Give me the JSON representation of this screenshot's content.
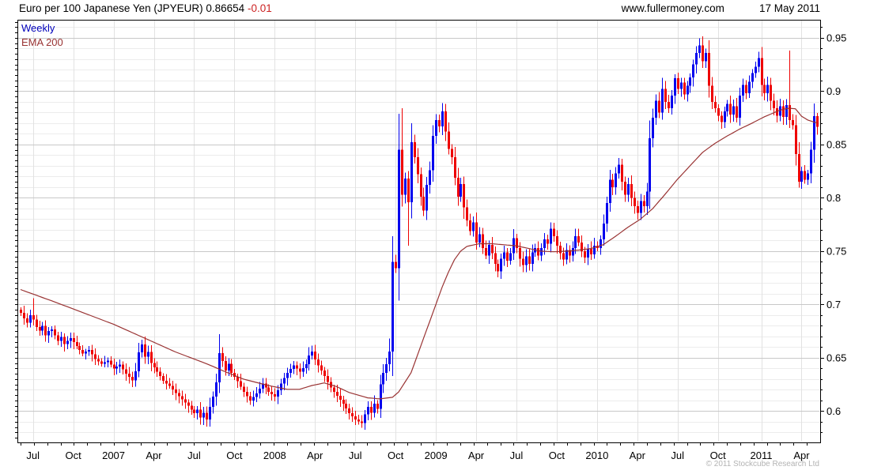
{
  "header": {
    "title": "Euro per 100 Japanese Yen (JPYEUR) 0.86654",
    "change": "-0.01",
    "site": "www.fullermoney.com",
    "date": "17 May 2011"
  },
  "legend": {
    "timeframe": "Weekly",
    "indicator": "EMA 200"
  },
  "footer": {
    "copyright": "© 2011 Stockcube Research Ltd"
  },
  "colors": {
    "up": "#0000ee",
    "down": "#ee0000",
    "ema_line": "#993333",
    "grid_minor": "#ececec",
    "grid_major": "#c8c8c8",
    "grid_vertical": "#e2e2e2",
    "axis": "#000000",
    "label": "#000000",
    "change_red": "#cc2222",
    "legend_blue": "#0000bb",
    "copyright_gray": "#b3b3b3"
  },
  "chart_data": {
    "type": "candlestick",
    "title": "Euro per 100 Japanese Yen (JPYEUR)",
    "timeframe": "Weekly",
    "indicator": "EMA 200",
    "last_price": 0.86654,
    "change": -0.01,
    "date": "17 May 2011",
    "y_axis": {
      "min": 0.5707,
      "max": 0.967,
      "label_values": [
        0.95,
        0.9,
        0.85,
        0.8,
        0.75,
        0.7,
        0.65,
        0.6
      ],
      "minor_tick_step": 0.01,
      "label_step": 0.05,
      "grid": true,
      "side": "right"
    },
    "x_axis": {
      "weeks": 258,
      "start": "Jun 2006",
      "end": "May 2011",
      "quarter_labels": [
        [
          4,
          "Jul"
        ],
        [
          17,
          "Oct"
        ],
        [
          30,
          "2007"
        ],
        [
          43,
          "Apr"
        ],
        [
          56,
          "Jul"
        ],
        [
          69,
          "Oct"
        ],
        [
          82,
          "2008"
        ],
        [
          95,
          "Apr"
        ],
        [
          108,
          "Jul"
        ],
        [
          121,
          "Oct"
        ],
        [
          134,
          "2009"
        ],
        [
          147,
          "Apr"
        ],
        [
          160,
          "Jul"
        ],
        [
          173,
          "Oct"
        ],
        [
          186,
          "2010"
        ],
        [
          199,
          "Apr"
        ],
        [
          212,
          "Jul"
        ],
        [
          225,
          "Oct"
        ],
        [
          239,
          "2011"
        ],
        [
          252,
          "Apr"
        ]
      ],
      "months_total": 60
    },
    "first_open": 0.695,
    "close_anchors": [
      [
        0,
        0.692
      ],
      [
        1,
        0.687
      ],
      [
        2,
        0.683
      ],
      [
        3,
        0.69
      ],
      [
        4,
        0.686
      ],
      [
        5,
        0.679
      ],
      [
        6,
        0.6755
      ],
      [
        7,
        0.68
      ],
      [
        8,
        0.671
      ],
      [
        9,
        0.675
      ],
      [
        10,
        0.6765
      ],
      [
        11,
        0.671
      ],
      [
        12,
        0.666
      ],
      [
        13,
        0.6695
      ],
      [
        14,
        0.663
      ],
      [
        16,
        0.6685
      ],
      [
        18,
        0.661
      ],
      [
        20,
        0.654
      ],
      [
        22,
        0.6575
      ],
      [
        24,
        0.649
      ],
      [
        26,
        0.6445
      ],
      [
        28,
        0.6475
      ],
      [
        30,
        0.64
      ],
      [
        32,
        0.6435
      ],
      [
        34,
        0.635
      ],
      [
        36,
        0.629
      ],
      [
        37,
        0.6375
      ],
      [
        38,
        0.655
      ],
      [
        39,
        0.6625
      ],
      [
        40,
        0.651
      ],
      [
        41,
        0.6555
      ],
      [
        42,
        0.645
      ],
      [
        44,
        0.637
      ],
      [
        46,
        0.6285
      ],
      [
        48,
        0.6235
      ],
      [
        50,
        0.617
      ],
      [
        52,
        0.611
      ],
      [
        54,
        0.605
      ],
      [
        56,
        0.598
      ],
      [
        57,
        0.6015
      ],
      [
        58,
        0.594
      ],
      [
        59,
        0.5985
      ],
      [
        60,
        0.592
      ],
      [
        61,
        0.604
      ],
      [
        62,
        0.6135
      ],
      [
        63,
        0.627
      ],
      [
        64,
        0.6545
      ],
      [
        65,
        0.647
      ],
      [
        66,
        0.638
      ],
      [
        67,
        0.6445
      ],
      [
        68,
        0.636
      ],
      [
        70,
        0.628
      ],
      [
        72,
        0.618
      ],
      [
        74,
        0.61
      ],
      [
        76,
        0.6165
      ],
      [
        78,
        0.626
      ],
      [
        80,
        0.618
      ],
      [
        82,
        0.6135
      ],
      [
        84,
        0.626
      ],
      [
        86,
        0.636
      ],
      [
        88,
        0.643
      ],
      [
        90,
        0.637
      ],
      [
        92,
        0.644
      ],
      [
        93,
        0.652
      ],
      [
        94,
        0.656
      ],
      [
        95,
        0.6485
      ],
      [
        96,
        0.643
      ],
      [
        98,
        0.633
      ],
      [
        100,
        0.622
      ],
      [
        102,
        0.6145
      ],
      [
        104,
        0.607
      ],
      [
        106,
        0.598
      ],
      [
        108,
        0.592
      ],
      [
        110,
        0.589
      ],
      [
        111,
        0.597
      ],
      [
        112,
        0.604
      ],
      [
        113,
        0.5985
      ],
      [
        114,
        0.607
      ],
      [
        115,
        0.602
      ],
      [
        116,
        0.625
      ],
      [
        117,
        0.636
      ],
      [
        118,
        0.644
      ],
      [
        119,
        0.656
      ],
      [
        120,
        0.74
      ],
      [
        121,
        0.734
      ],
      [
        122,
        0.845
      ],
      [
        123,
        0.803
      ],
      [
        124,
        0.818
      ],
      [
        125,
        0.796
      ],
      [
        126,
        0.852
      ],
      [
        127,
        0.838
      ],
      [
        128,
        0.822
      ],
      [
        129,
        0.801
      ],
      [
        130,
        0.788
      ],
      [
        131,
        0.812
      ],
      [
        132,
        0.826
      ],
      [
        133,
        0.858
      ],
      [
        134,
        0.873
      ],
      [
        135,
        0.867
      ],
      [
        136,
        0.881
      ],
      [
        137,
        0.862
      ],
      [
        138,
        0.846
      ],
      [
        139,
        0.838
      ],
      [
        140,
        0.819
      ],
      [
        141,
        0.801
      ],
      [
        142,
        0.813
      ],
      [
        143,
        0.791
      ],
      [
        144,
        0.779
      ],
      [
        145,
        0.769
      ],
      [
        146,
        0.777
      ],
      [
        147,
        0.758
      ],
      [
        148,
        0.766
      ],
      [
        149,
        0.753
      ],
      [
        150,
        0.746
      ],
      [
        151,
        0.756
      ],
      [
        152,
        0.748
      ],
      [
        153,
        0.738
      ],
      [
        154,
        0.731
      ],
      [
        155,
        0.743
      ],
      [
        156,
        0.749
      ],
      [
        157,
        0.741
      ],
      [
        158,
        0.748
      ],
      [
        159,
        0.762
      ],
      [
        160,
        0.753
      ],
      [
        161,
        0.743
      ],
      [
        162,
        0.737
      ],
      [
        163,
        0.745
      ],
      [
        164,
        0.738
      ],
      [
        165,
        0.749
      ],
      [
        166,
        0.753
      ],
      [
        167,
        0.746
      ],
      [
        168,
        0.753
      ],
      [
        169,
        0.761
      ],
      [
        170,
        0.757
      ],
      [
        171,
        0.771
      ],
      [
        172,
        0.764
      ],
      [
        173,
        0.755
      ],
      [
        174,
        0.748
      ],
      [
        175,
        0.742
      ],
      [
        176,
        0.751
      ],
      [
        177,
        0.746
      ],
      [
        178,
        0.753
      ],
      [
        179,
        0.764
      ],
      [
        180,
        0.758
      ],
      [
        181,
        0.75
      ],
      [
        182,
        0.744
      ],
      [
        183,
        0.752
      ],
      [
        184,
        0.747
      ],
      [
        185,
        0.755
      ],
      [
        186,
        0.753
      ],
      [
        187,
        0.761
      ],
      [
        188,
        0.776
      ],
      [
        189,
        0.795
      ],
      [
        190,
        0.817
      ],
      [
        191,
        0.81
      ],
      [
        192,
        0.823
      ],
      [
        193,
        0.831
      ],
      [
        194,
        0.815
      ],
      [
        195,
        0.803
      ],
      [
        196,
        0.813
      ],
      [
        197,
        0.8
      ],
      [
        198,
        0.792
      ],
      [
        199,
        0.786
      ],
      [
        200,
        0.797
      ],
      [
        201,
        0.792
      ],
      [
        202,
        0.806
      ],
      [
        203,
        0.856
      ],
      [
        204,
        0.875
      ],
      [
        205,
        0.891
      ],
      [
        206,
        0.88
      ],
      [
        207,
        0.902
      ],
      [
        208,
        0.89
      ],
      [
        209,
        0.884
      ],
      [
        210,
        0.896
      ],
      [
        211,
        0.912
      ],
      [
        212,
        0.902
      ],
      [
        213,
        0.908
      ],
      [
        214,
        0.897
      ],
      [
        215,
        0.905
      ],
      [
        216,
        0.913
      ],
      [
        217,
        0.925
      ],
      [
        218,
        0.936
      ],
      [
        219,
        0.943
      ],
      [
        220,
        0.928
      ],
      [
        221,
        0.936
      ],
      [
        222,
        0.905
      ],
      [
        223,
        0.89
      ],
      [
        224,
        0.884
      ],
      [
        225,
        0.877
      ],
      [
        226,
        0.871
      ],
      [
        227,
        0.881
      ],
      [
        228,
        0.888
      ],
      [
        229,
        0.878
      ],
      [
        230,
        0.886
      ],
      [
        231,
        0.875
      ],
      [
        232,
        0.896
      ],
      [
        233,
        0.906
      ],
      [
        234,
        0.898
      ],
      [
        235,
        0.909
      ],
      [
        236,
        0.917
      ],
      [
        237,
        0.923
      ],
      [
        238,
        0.931
      ],
      [
        239,
        0.906
      ],
      [
        240,
        0.898
      ],
      [
        241,
        0.906
      ],
      [
        242,
        0.891
      ],
      [
        243,
        0.884
      ],
      [
        244,
        0.877
      ],
      [
        245,
        0.886
      ],
      [
        246,
        0.876
      ],
      [
        247,
        0.887
      ],
      [
        248,
        0.873
      ],
      [
        249,
        0.868
      ],
      [
        250,
        0.841
      ],
      [
        251,
        0.815
      ],
      [
        252,
        0.825
      ],
      [
        253,
        0.817
      ],
      [
        254,
        0.823
      ],
      [
        255,
        0.845
      ],
      [
        256,
        0.8765
      ],
      [
        257,
        0.86654
      ]
    ],
    "wick_overrides": [
      [
        4,
        0.706,
        null
      ],
      [
        39,
        0.667,
        null
      ],
      [
        60,
        null,
        0.5855
      ],
      [
        64,
        0.672,
        null
      ],
      [
        93,
        0.66,
        null
      ],
      [
        110,
        null,
        0.5845
      ],
      [
        119,
        0.668,
        null
      ],
      [
        122,
        0.879,
        null
      ],
      [
        123,
        0.884,
        null
      ],
      [
        125,
        null,
        0.755
      ],
      [
        136,
        0.889,
        null
      ],
      [
        211,
        0.916,
        null
      ],
      [
        219,
        0.9495,
        null
      ],
      [
        221,
        0.94,
        null
      ],
      [
        238,
        0.937,
        null
      ],
      [
        248,
        0.938,
        null
      ],
      [
        251,
        null,
        0.8095
      ],
      [
        257,
        0.8795,
        null
      ]
    ],
    "ema_anchors": [
      [
        0,
        0.714
      ],
      [
        10,
        0.7035
      ],
      [
        20,
        0.6925
      ],
      [
        30,
        0.6815
      ],
      [
        40,
        0.6685
      ],
      [
        50,
        0.6555
      ],
      [
        60,
        0.6445
      ],
      [
        66,
        0.637
      ],
      [
        72,
        0.63
      ],
      [
        80,
        0.624
      ],
      [
        86,
        0.6205
      ],
      [
        90,
        0.6205
      ],
      [
        94,
        0.624
      ],
      [
        98,
        0.6265
      ],
      [
        102,
        0.623
      ],
      [
        106,
        0.6175
      ],
      [
        112,
        0.6125
      ],
      [
        116,
        0.6115
      ],
      [
        120,
        0.613
      ],
      [
        122,
        0.618
      ],
      [
        126,
        0.636
      ],
      [
        128,
        0.652
      ],
      [
        130,
        0.668
      ],
      [
        132,
        0.684
      ],
      [
        134,
        0.7
      ],
      [
        136,
        0.716
      ],
      [
        138,
        0.73
      ],
      [
        140,
        0.742
      ],
      [
        142,
        0.75
      ],
      [
        144,
        0.7545
      ],
      [
        148,
        0.757
      ],
      [
        152,
        0.757
      ],
      [
        156,
        0.756
      ],
      [
        160,
        0.755
      ],
      [
        164,
        0.7525
      ],
      [
        168,
        0.75
      ],
      [
        172,
        0.7495
      ],
      [
        176,
        0.75
      ],
      [
        180,
        0.751
      ],
      [
        184,
        0.7525
      ],
      [
        188,
        0.756
      ],
      [
        192,
        0.764
      ],
      [
        196,
        0.7725
      ],
      [
        200,
        0.78
      ],
      [
        204,
        0.79
      ],
      [
        208,
        0.8035
      ],
      [
        212,
        0.8175
      ],
      [
        216,
        0.83
      ],
      [
        220,
        0.8425
      ],
      [
        224,
        0.851
      ],
      [
        228,
        0.858
      ],
      [
        232,
        0.8645
      ],
      [
        236,
        0.87
      ],
      [
        240,
        0.876
      ],
      [
        244,
        0.881
      ],
      [
        246,
        0.883
      ],
      [
        248,
        0.884
      ],
      [
        250,
        0.8835
      ],
      [
        252,
        0.8765
      ],
      [
        254,
        0.873
      ],
      [
        256,
        0.871
      ],
      [
        257,
        0.8705
      ]
    ],
    "render": {
      "seed": 7,
      "base_wick": 0.0018,
      "wick_rand": 0.0042,
      "wick_vol_factor": 0.22
    }
  }
}
